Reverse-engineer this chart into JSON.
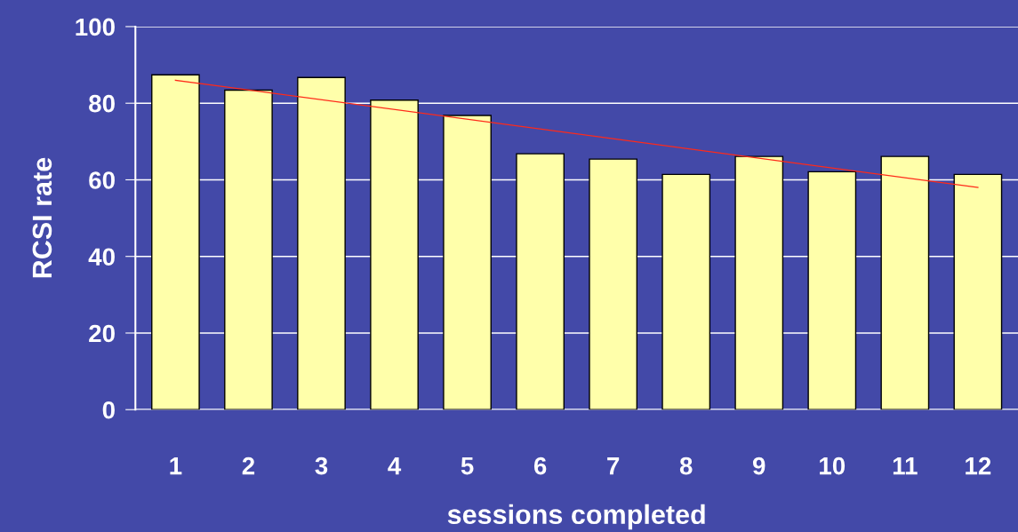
{
  "chart_data": {
    "type": "bar",
    "xlabel": "sessions completed",
    "ylabel": "RCSI rate",
    "categories": [
      "1",
      "2",
      "3",
      "4",
      "5",
      "6",
      "7",
      "8",
      "9",
      "10",
      "11",
      "12"
    ],
    "series": [
      {
        "color": "#ffffaa",
        "values": [
          87.4,
          83.4,
          86.7,
          80.8,
          76.8,
          66.8,
          65.4,
          61.4,
          66.1,
          62.1,
          66.1,
          61.4
        ]
      },
      {
        "type": "line",
        "color": "#ff2a1a",
        "x": [
          "1",
          "12"
        ],
        "values": [
          86.0,
          58.0
        ]
      }
    ],
    "ylim": [
      0,
      100
    ],
    "yticks": [
      0,
      20,
      40,
      60,
      80,
      100
    ],
    "grid": "y",
    "legend": false
  }
}
